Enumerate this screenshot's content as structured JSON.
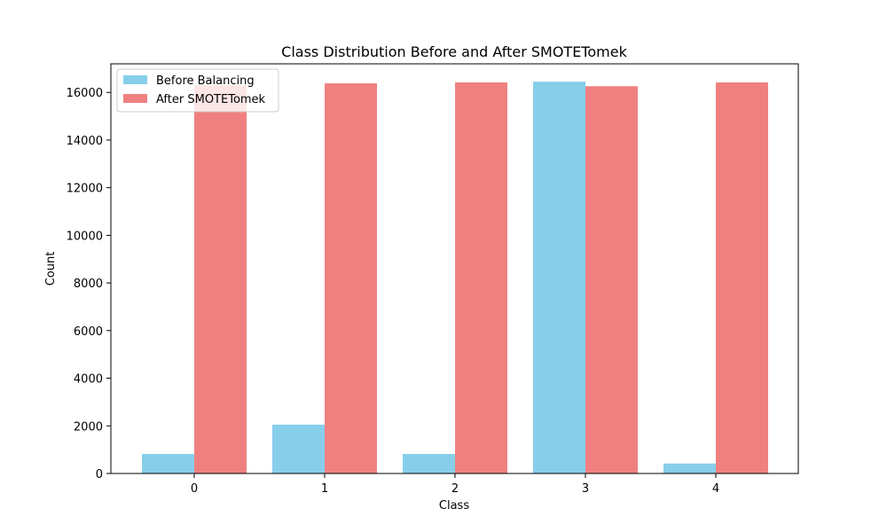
{
  "chart_data": {
    "type": "bar",
    "title": "Class Distribution Before and After SMOTETomek",
    "xlabel": "Class",
    "ylabel": "Count",
    "categories": [
      "0",
      "1",
      "2",
      "3",
      "4"
    ],
    "ylim": [
      0,
      17200
    ],
    "yticks": [
      0,
      2000,
      4000,
      6000,
      8000,
      10000,
      12000,
      14000,
      16000
    ],
    "yticklabels": [
      "0",
      "2000",
      "4000",
      "6000",
      "8000",
      "10000",
      "12000",
      "14000",
      "16000"
    ],
    "grid": false,
    "legend_position": "top-left",
    "series": [
      {
        "name": "Before Balancing",
        "color": "#87ceeb",
        "values": [
          820,
          2050,
          820,
          16450,
          420
        ]
      },
      {
        "name": "After SMOTETomek",
        "color": "#f08080",
        "values": [
          16300,
          16380,
          16420,
          16260,
          16420
        ]
      }
    ]
  }
}
